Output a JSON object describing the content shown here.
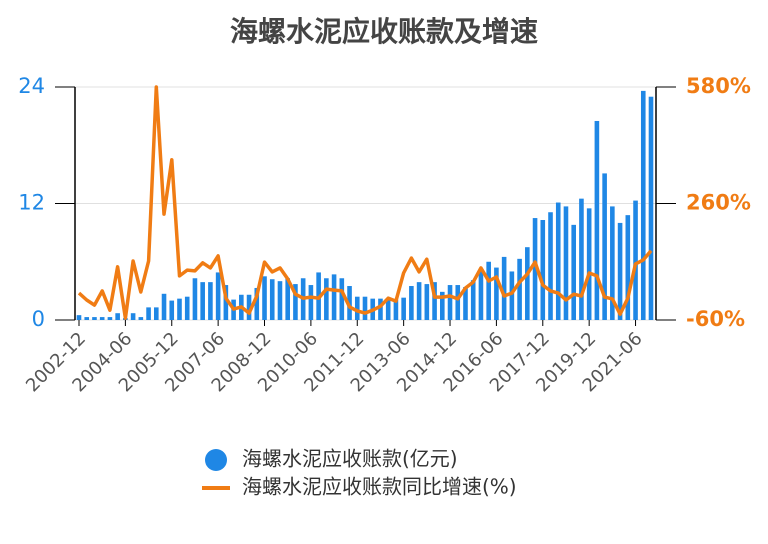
{
  "chart_data": {
    "type": "bar-line",
    "title": "海螺水泥应收账款及增速",
    "categories": [
      "2002-12",
      null,
      null,
      null,
      null,
      null,
      "2004-06",
      null,
      null,
      null,
      null,
      null,
      "2005-12",
      null,
      null,
      null,
      null,
      null,
      "2007-06",
      null,
      null,
      null,
      null,
      null,
      "2008-12",
      null,
      null,
      null,
      null,
      null,
      "2010-06",
      null,
      null,
      null,
      null,
      null,
      "2011-12",
      null,
      null,
      null,
      null,
      null,
      "2013-06",
      null,
      null,
      null,
      null,
      null,
      "2014-12",
      null,
      null,
      null,
      null,
      null,
      "2016-06",
      null,
      null,
      null,
      null,
      null,
      "2017-12",
      null,
      null,
      null,
      null,
      null,
      "2019-12",
      null,
      null,
      null,
      null,
      null,
      "2021-06",
      null,
      null
    ],
    "series": [
      {
        "name": "海螺水泥应收账款(亿元)",
        "color": "#1f87e5",
        "type": "bar",
        "axis": "y",
        "values": [
          0.5,
          0.3,
          0.3,
          0.3,
          0.3,
          0.7,
          0.2,
          0.7,
          0.3,
          1.3,
          1.3,
          2.7,
          2.0,
          2.2,
          2.4,
          4.3,
          3.9,
          3.9,
          4.9,
          3.6,
          2.1,
          2.6,
          2.6,
          3.3,
          4.5,
          4.2,
          4.0,
          4.3,
          3.7,
          4.3,
          3.6,
          4.9,
          4.3,
          4.7,
          4.3,
          3.5,
          2.4,
          2.4,
          2.2,
          2.2,
          2.2,
          2.1,
          2.3,
          3.5,
          3.9,
          3.7,
          3.9,
          2.9,
          3.6,
          3.6,
          3.4,
          4.1,
          5.3,
          6.0,
          5.4,
          6.5,
          5.0,
          6.3,
          7.5,
          10.5,
          10.3,
          11.1,
          12.1,
          11.7,
          9.8,
          12.5,
          11.5,
          20.5,
          15.1,
          11.7,
          10.0,
          10.8,
          12.3,
          23.6,
          23.0
        ]
      },
      {
        "name": "海螺水泥应收账款同比增速(%)",
        "color": "#f07c14",
        "type": "line",
        "axis": "y2",
        "values": [
          14,
          -5,
          -19,
          20,
          -33,
          86,
          -55,
          102,
          17,
          102,
          580,
          231,
          380,
          61,
          77,
          75,
          97,
          83,
          116,
          0,
          -30,
          -24,
          -41,
          6,
          99,
          72,
          83,
          53,
          11,
          0,
          3,
          0,
          25,
          22,
          20,
          -24,
          -35,
          -41,
          -33,
          -22,
          0,
          -8,
          69,
          110,
          72,
          107,
          3,
          3,
          6,
          -2,
          28,
          44,
          83,
          47,
          58,
          6,
          14,
          44,
          66,
          99,
          36,
          20,
          14,
          -5,
          11,
          6,
          69,
          61,
          3,
          -2,
          -44,
          0,
          94,
          105,
          130
        ]
      }
    ],
    "ylim": [
      0,
      24
    ],
    "yticks": [
      0,
      12,
      24
    ],
    "y2lim": [
      -60,
      580
    ],
    "y2ticks": [
      {
        "value": -60,
        "label": "-60%"
      },
      {
        "value": 260,
        "label": "260%"
      },
      {
        "value": 580,
        "label": "580%"
      }
    ],
    "grid": true,
    "legend": "bottom"
  }
}
